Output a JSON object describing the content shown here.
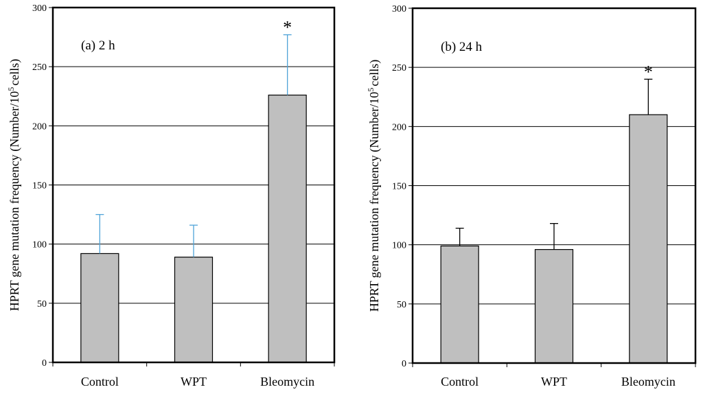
{
  "chart_data": [
    {
      "type": "bar",
      "title": "(a) 2 h",
      "ylabel": "HPRT gene mutation frequency (Number/10^5 cells)",
      "ylabel_parts": {
        "before": "HPRT gene mutation frequency (Number/10",
        "sup": "5",
        "after": "cells)"
      },
      "categories": [
        "Control",
        "WPT",
        "Bleomycin"
      ],
      "values": [
        92,
        89,
        226
      ],
      "error_upper": [
        125,
        116,
        277
      ],
      "error_color": "#4ea3d8",
      "annotations": [
        "",
        "",
        "*"
      ],
      "ylim": [
        0,
        300
      ],
      "yticks": [
        0,
        50,
        100,
        150,
        200,
        250,
        300
      ],
      "grid": true,
      "bar_color": "#bfbfbf"
    },
    {
      "type": "bar",
      "title": "(b) 24 h",
      "ylabel": "HPRT gene mutation frequency (Number/10^5 cells)",
      "ylabel_parts": {
        "before": "HPRT gene mutation frequency (Number/10",
        "sup": "5",
        "after": "cells)"
      },
      "categories": [
        "Control",
        "WPT",
        "Bleomycin"
      ],
      "values": [
        99,
        96,
        210
      ],
      "error_upper": [
        114,
        118,
        240
      ],
      "error_color": "#000000",
      "annotations": [
        "",
        "",
        "*"
      ],
      "ylim": [
        0,
        300
      ],
      "yticks": [
        0,
        50,
        100,
        150,
        200,
        250,
        300
      ],
      "grid": true,
      "bar_color": "#bfbfbf"
    }
  ]
}
